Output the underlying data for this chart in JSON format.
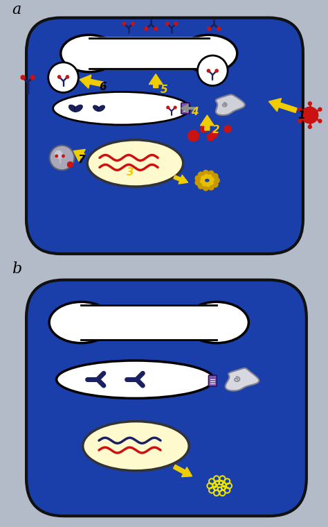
{
  "bg_color": "#b3bbc8",
  "cell_color": "#1a3faa",
  "cell_outline": "#111111",
  "yellow_arrow": "#f0cc00",
  "gray_arrow": "#999999",
  "nucleus_color": "#fffacd",
  "red_color": "#cc1111",
  "blue_dark": "#1a2060",
  "purple_color": "#7755aa",
  "gray_color": "#b0b0c0",
  "label_a": "a",
  "label_b": "b"
}
